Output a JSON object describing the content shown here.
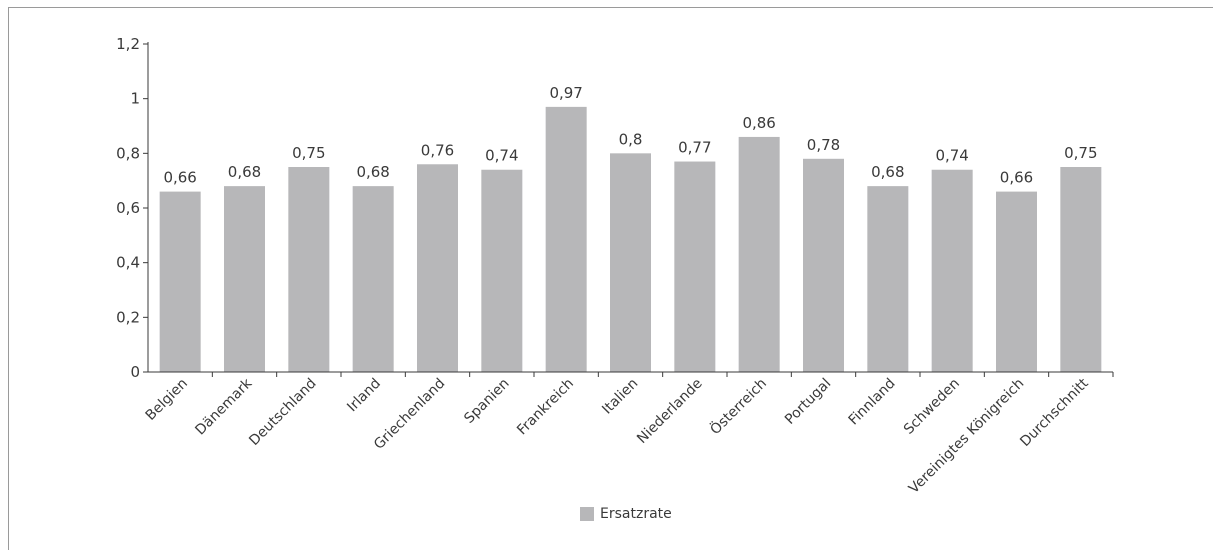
{
  "chart_data": {
    "type": "bar",
    "categories": [
      "Belgien",
      "Dänemark",
      "Deutschland",
      "Irland",
      "Griechenland",
      "Spanien",
      "Frankreich",
      "Italien",
      "Niederlande",
      "Österreich",
      "Portugal",
      "Finnland",
      "Schweden",
      "Vereinigtes Königreich",
      "Durchschnitt"
    ],
    "series": [
      {
        "name": "Ersatzrate",
        "values": [
          0.66,
          0.68,
          0.75,
          0.68,
          0.76,
          0.74,
          0.97,
          0.8,
          0.77,
          0.86,
          0.78,
          0.68,
          0.74,
          0.66,
          0.75
        ],
        "labels": [
          "0,66",
          "0,68",
          "0,75",
          "0,68",
          "0,76",
          "0,74",
          "0,97",
          "0,8",
          "0,77",
          "0,86",
          "0,78",
          "0,68",
          "0,74",
          "0,66",
          "0,75"
        ]
      }
    ],
    "ylim": [
      0,
      1.2
    ],
    "yticks": [
      0,
      0.2,
      0.4,
      0.6,
      0.8,
      1,
      1.2
    ],
    "ytick_labels": [
      "0",
      "0,2",
      "0,4",
      "0,6",
      "0,8",
      "1",
      "1,2"
    ],
    "grid": false,
    "legend": "bottom-center",
    "title": "",
    "xlabel": "",
    "ylabel": "",
    "bar_color": "#b7b7b9"
  }
}
